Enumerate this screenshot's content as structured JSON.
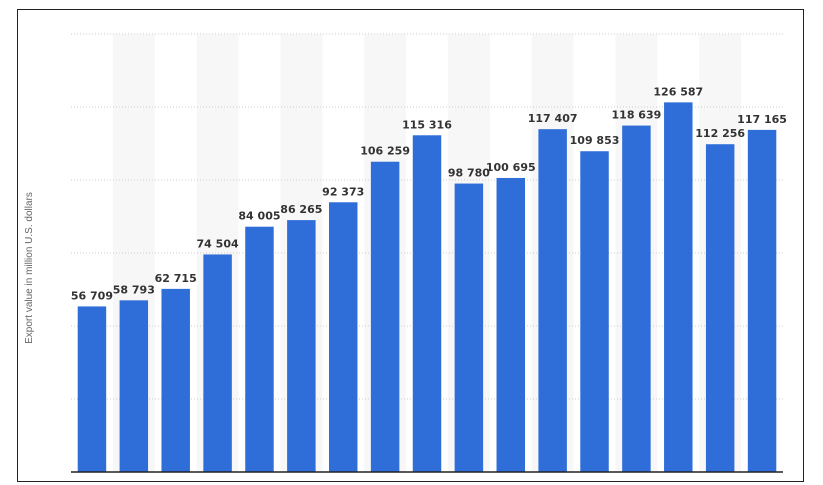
{
  "chart_data": {
    "type": "bar",
    "title": "",
    "xlabel": "",
    "ylabel": "Export value in million U.S. dollars",
    "ylim": [
      0,
      150000
    ],
    "grid": true,
    "bar_color": "#2f6ed8",
    "band_color": "#f7f7f7",
    "grid_color": "#cccccc",
    "values": [
      56709,
      58793,
      62715,
      74504,
      84005,
      86265,
      92373,
      106259,
      115316,
      98780,
      100695,
      117407,
      109853,
      118639,
      126587,
      112256,
      117165
    ],
    "value_labels": [
      "56 709",
      "58 793",
      "62 715",
      "74 504",
      "84 005",
      "86 265",
      "92 373",
      "106 259",
      "115 316",
      "98 780",
      "100 695",
      "117 407",
      "109 853",
      "118 639",
      "126 587",
      "112 256",
      "117 165"
    ]
  }
}
